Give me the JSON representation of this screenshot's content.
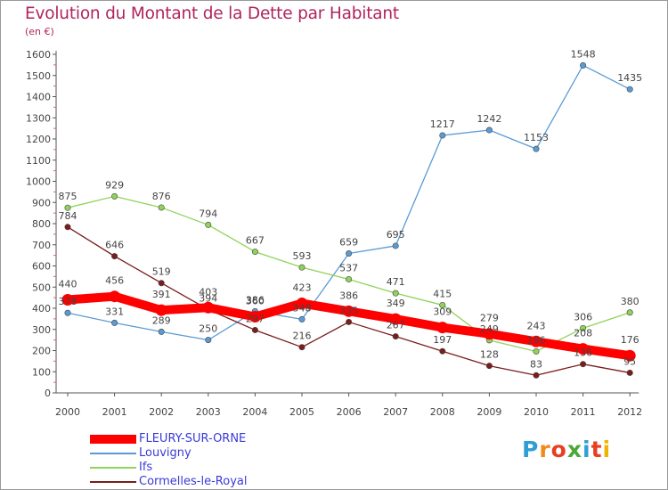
{
  "title": "Evolution du Montant de la Dette par Habitant",
  "unit": "(en €)",
  "brand": {
    "text": "Proxiti",
    "letters": [
      {
        "ch": "P",
        "color": "#2e9fd6"
      },
      {
        "ch": "r",
        "color": "#f08a1c"
      },
      {
        "ch": "o",
        "color": "#e63f22"
      },
      {
        "ch": "x",
        "color": "#4aa83a"
      },
      {
        "ch": "i",
        "color": "#2e9fd6"
      },
      {
        "ch": "t",
        "color": "#e63f22"
      },
      {
        "ch": "i",
        "color": "#f0b400"
      }
    ]
  },
  "chart_data": {
    "type": "line",
    "title": "Evolution du Montant de la Dette par Habitant",
    "ylabel": "(en €)",
    "xlabel": "",
    "x": [
      "2000",
      "2001",
      "2002",
      "2003",
      "2004",
      "2005",
      "2006",
      "2007",
      "2008",
      "2009",
      "2010",
      "2011",
      "2012"
    ],
    "ylim": [
      0,
      1600
    ],
    "yticks": [
      0,
      100,
      200,
      300,
      400,
      500,
      600,
      700,
      800,
      900,
      1000,
      1100,
      1200,
      1300,
      1400,
      1500,
      1600
    ],
    "grid": false,
    "legend": "bottom-left",
    "series": [
      {
        "name": "FLEURY-SUR-ORNE",
        "color": "#ff0000",
        "values": [
          440,
          456,
          391,
          403,
          360,
          423,
          386,
          349,
          309,
          279,
          243,
          208,
          176
        ]
      },
      {
        "name": "Louvigny",
        "color": "#5b9bd5",
        "values": [
          378,
          331,
          289,
          250,
          386,
          348,
          659,
          695,
          1217,
          1242,
          1153,
          1548,
          1435
        ]
      },
      {
        "name": "Ifs",
        "color": "#8fd35a",
        "values": [
          875,
          929,
          876,
          794,
          667,
          593,
          537,
          471,
          415,
          249,
          196,
          306,
          380
        ]
      },
      {
        "name": "Cormelles-le-Royal",
        "color": "#7a1d1d",
        "values": [
          784,
          646,
          519,
          394,
          297,
          216,
          335,
          267,
          197,
          128,
          83,
          136,
          95
        ]
      }
    ]
  }
}
